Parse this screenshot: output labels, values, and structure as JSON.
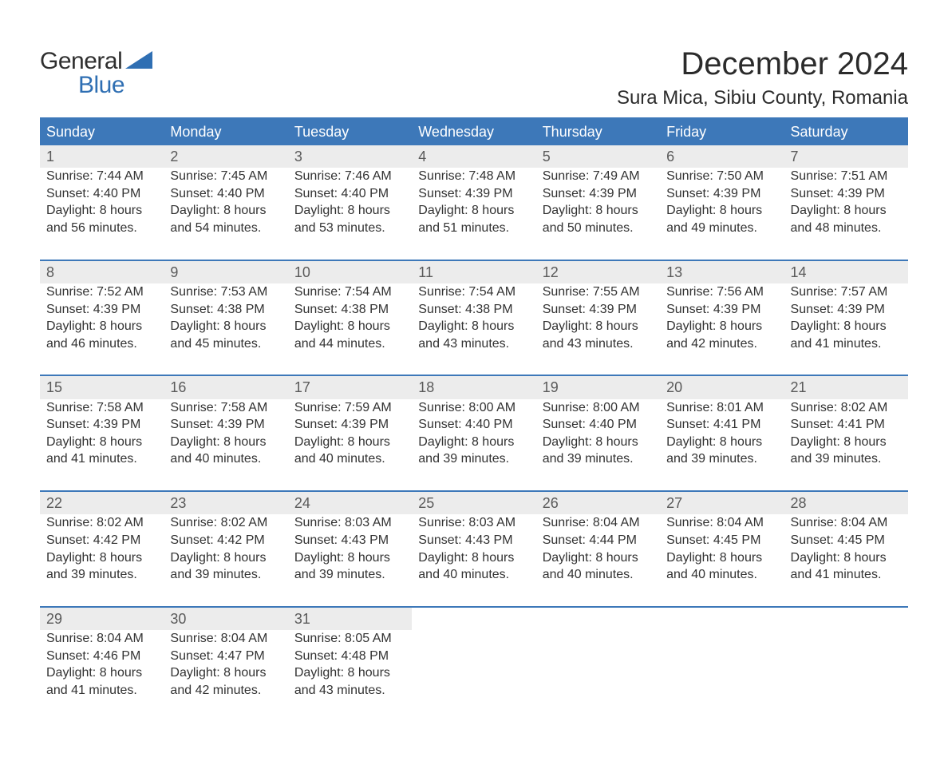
{
  "brand": {
    "word1": "General",
    "word2": "Blue",
    "accent_color": "#2f6fb3"
  },
  "title": "December 2024",
  "location": "Sura Mica, Sibiu County, Romania",
  "colors": {
    "header_bg": "#3d78b9",
    "header_text": "#ffffff",
    "daynum_bg": "#ececec",
    "daynum_text": "#5a5a5a",
    "body_text": "#323232",
    "page_bg": "#ffffff",
    "row_border": "#3d78b9"
  },
  "fonts": {
    "title_size_pt": 30,
    "location_size_pt": 18,
    "header_size_pt": 14,
    "body_size_pt": 12
  },
  "weekdays": [
    "Sunday",
    "Monday",
    "Tuesday",
    "Wednesday",
    "Thursday",
    "Friday",
    "Saturday"
  ],
  "weeks": [
    [
      {
        "n": "1",
        "sr": "Sunrise: 7:44 AM",
        "ss": "Sunset: 4:40 PM",
        "d1": "Daylight: 8 hours",
        "d2": "and 56 minutes."
      },
      {
        "n": "2",
        "sr": "Sunrise: 7:45 AM",
        "ss": "Sunset: 4:40 PM",
        "d1": "Daylight: 8 hours",
        "d2": "and 54 minutes."
      },
      {
        "n": "3",
        "sr": "Sunrise: 7:46 AM",
        "ss": "Sunset: 4:40 PM",
        "d1": "Daylight: 8 hours",
        "d2": "and 53 minutes."
      },
      {
        "n": "4",
        "sr": "Sunrise: 7:48 AM",
        "ss": "Sunset: 4:39 PM",
        "d1": "Daylight: 8 hours",
        "d2": "and 51 minutes."
      },
      {
        "n": "5",
        "sr": "Sunrise: 7:49 AM",
        "ss": "Sunset: 4:39 PM",
        "d1": "Daylight: 8 hours",
        "d2": "and 50 minutes."
      },
      {
        "n": "6",
        "sr": "Sunrise: 7:50 AM",
        "ss": "Sunset: 4:39 PM",
        "d1": "Daylight: 8 hours",
        "d2": "and 49 minutes."
      },
      {
        "n": "7",
        "sr": "Sunrise: 7:51 AM",
        "ss": "Sunset: 4:39 PM",
        "d1": "Daylight: 8 hours",
        "d2": "and 48 minutes."
      }
    ],
    [
      {
        "n": "8",
        "sr": "Sunrise: 7:52 AM",
        "ss": "Sunset: 4:39 PM",
        "d1": "Daylight: 8 hours",
        "d2": "and 46 minutes."
      },
      {
        "n": "9",
        "sr": "Sunrise: 7:53 AM",
        "ss": "Sunset: 4:38 PM",
        "d1": "Daylight: 8 hours",
        "d2": "and 45 minutes."
      },
      {
        "n": "10",
        "sr": "Sunrise: 7:54 AM",
        "ss": "Sunset: 4:38 PM",
        "d1": "Daylight: 8 hours",
        "d2": "and 44 minutes."
      },
      {
        "n": "11",
        "sr": "Sunrise: 7:54 AM",
        "ss": "Sunset: 4:38 PM",
        "d1": "Daylight: 8 hours",
        "d2": "and 43 minutes."
      },
      {
        "n": "12",
        "sr": "Sunrise: 7:55 AM",
        "ss": "Sunset: 4:39 PM",
        "d1": "Daylight: 8 hours",
        "d2": "and 43 minutes."
      },
      {
        "n": "13",
        "sr": "Sunrise: 7:56 AM",
        "ss": "Sunset: 4:39 PM",
        "d1": "Daylight: 8 hours",
        "d2": "and 42 minutes."
      },
      {
        "n": "14",
        "sr": "Sunrise: 7:57 AM",
        "ss": "Sunset: 4:39 PM",
        "d1": "Daylight: 8 hours",
        "d2": "and 41 minutes."
      }
    ],
    [
      {
        "n": "15",
        "sr": "Sunrise: 7:58 AM",
        "ss": "Sunset: 4:39 PM",
        "d1": "Daylight: 8 hours",
        "d2": "and 41 minutes."
      },
      {
        "n": "16",
        "sr": "Sunrise: 7:58 AM",
        "ss": "Sunset: 4:39 PM",
        "d1": "Daylight: 8 hours",
        "d2": "and 40 minutes."
      },
      {
        "n": "17",
        "sr": "Sunrise: 7:59 AM",
        "ss": "Sunset: 4:39 PM",
        "d1": "Daylight: 8 hours",
        "d2": "and 40 minutes."
      },
      {
        "n": "18",
        "sr": "Sunrise: 8:00 AM",
        "ss": "Sunset: 4:40 PM",
        "d1": "Daylight: 8 hours",
        "d2": "and 39 minutes."
      },
      {
        "n": "19",
        "sr": "Sunrise: 8:00 AM",
        "ss": "Sunset: 4:40 PM",
        "d1": "Daylight: 8 hours",
        "d2": "and 39 minutes."
      },
      {
        "n": "20",
        "sr": "Sunrise: 8:01 AM",
        "ss": "Sunset: 4:41 PM",
        "d1": "Daylight: 8 hours",
        "d2": "and 39 minutes."
      },
      {
        "n": "21",
        "sr": "Sunrise: 8:02 AM",
        "ss": "Sunset: 4:41 PM",
        "d1": "Daylight: 8 hours",
        "d2": "and 39 minutes."
      }
    ],
    [
      {
        "n": "22",
        "sr": "Sunrise: 8:02 AM",
        "ss": "Sunset: 4:42 PM",
        "d1": "Daylight: 8 hours",
        "d2": "and 39 minutes."
      },
      {
        "n": "23",
        "sr": "Sunrise: 8:02 AM",
        "ss": "Sunset: 4:42 PM",
        "d1": "Daylight: 8 hours",
        "d2": "and 39 minutes."
      },
      {
        "n": "24",
        "sr": "Sunrise: 8:03 AM",
        "ss": "Sunset: 4:43 PM",
        "d1": "Daylight: 8 hours",
        "d2": "and 39 minutes."
      },
      {
        "n": "25",
        "sr": "Sunrise: 8:03 AM",
        "ss": "Sunset: 4:43 PM",
        "d1": "Daylight: 8 hours",
        "d2": "and 40 minutes."
      },
      {
        "n": "26",
        "sr": "Sunrise: 8:04 AM",
        "ss": "Sunset: 4:44 PM",
        "d1": "Daylight: 8 hours",
        "d2": "and 40 minutes."
      },
      {
        "n": "27",
        "sr": "Sunrise: 8:04 AM",
        "ss": "Sunset: 4:45 PM",
        "d1": "Daylight: 8 hours",
        "d2": "and 40 minutes."
      },
      {
        "n": "28",
        "sr": "Sunrise: 8:04 AM",
        "ss": "Sunset: 4:45 PM",
        "d1": "Daylight: 8 hours",
        "d2": "and 41 minutes."
      }
    ],
    [
      {
        "n": "29",
        "sr": "Sunrise: 8:04 AM",
        "ss": "Sunset: 4:46 PM",
        "d1": "Daylight: 8 hours",
        "d2": "and 41 minutes."
      },
      {
        "n": "30",
        "sr": "Sunrise: 8:04 AM",
        "ss": "Sunset: 4:47 PM",
        "d1": "Daylight: 8 hours",
        "d2": "and 42 minutes."
      },
      {
        "n": "31",
        "sr": "Sunrise: 8:05 AM",
        "ss": "Sunset: 4:48 PM",
        "d1": "Daylight: 8 hours",
        "d2": "and 43 minutes."
      },
      null,
      null,
      null,
      null
    ]
  ]
}
